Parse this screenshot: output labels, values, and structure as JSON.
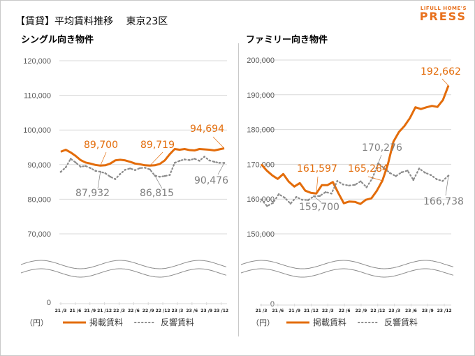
{
  "header": {
    "title": "【賃貸】平均賃料推移　 東京23区",
    "logo_top": "LIFULL HOME'S",
    "logo_main": "PRESS"
  },
  "colors": {
    "listing": "#e36c0a",
    "inquiry": "#8c8c8c",
    "grid": "#d9d9d9",
    "brand": "#e8711e"
  },
  "legend": {
    "listing": "掲載賃料",
    "inquiry": "反響賃料",
    "unit": "（円）"
  },
  "chart_data": [
    {
      "type": "line",
      "title": "シングル向き物件",
      "ylabel": "（円）",
      "ylim": [
        0,
        120000
      ],
      "yticks": [
        "120,000",
        "110,000",
        "100,000",
        "90,000",
        "80,000",
        "70,000",
        "0"
      ],
      "axis_break": [
        0,
        65000
      ],
      "grid": true,
      "legend_position": "bottom",
      "x_tick_labels": [
        "21/3",
        "21/6",
        "21/9",
        "21/12",
        "22/3",
        "22/6",
        "22/9",
        "22/12",
        "23/3",
        "23/6",
        "23/9",
        "23/12"
      ],
      "series": [
        {
          "name": "掲載賃料",
          "style": "solid",
          "values": [
            93700,
            94300,
            93500,
            92500,
            91300,
            90600,
            90300,
            89900,
            89700,
            89800,
            90300,
            91200,
            91400,
            91200,
            90800,
            90300,
            90100,
            89800,
            89719,
            89800,
            90200,
            91200,
            93000,
            94500,
            94300,
            94500,
            94200,
            94100,
            94500,
            94400,
            94300,
            94100,
            94400,
            94694
          ]
        },
        {
          "name": "反響賃料",
          "style": "dotted",
          "values": [
            87900,
            89200,
            91700,
            90600,
            89400,
            89600,
            89000,
            88200,
            87932,
            87500,
            86500,
            85800,
            87300,
            88500,
            88900,
            88400,
            89000,
            89100,
            88600,
            86815,
            86500,
            86700,
            87000,
            90500,
            91100,
            91500,
            91300,
            91700,
            91100,
            92300,
            91200,
            90800,
            90500,
            90476
          ]
        }
      ],
      "annotations": [
        {
          "text": "89,700",
          "series": "掲載賃料"
        },
        {
          "text": "89,719",
          "series": "掲載賃料"
        },
        {
          "text": "94,694",
          "series": "掲載賃料"
        },
        {
          "text": "87,932",
          "series": "反響賃料"
        },
        {
          "text": "86,815",
          "series": "反響賃料"
        },
        {
          "text": "90,476",
          "series": "反響賃料"
        }
      ]
    },
    {
      "type": "line",
      "title": "ファミリー向き物件",
      "ylabel": "（円）",
      "ylim": [
        0,
        200000
      ],
      "yticks": [
        "200,000",
        "190,000",
        "180,000",
        "170,000",
        "160,000",
        "150,000",
        "0"
      ],
      "axis_break": [
        0,
        145000
      ],
      "grid": true,
      "legend_position": "bottom",
      "x_tick_labels": [
        "21/3",
        "21/6",
        "21/9",
        "21/12",
        "22/3",
        "22/6",
        "22/9",
        "22/12",
        "23/3",
        "23/6",
        "23/9",
        "23/12"
      ],
      "series": [
        {
          "name": "掲載賃料",
          "style": "solid",
          "values": [
            170000,
            168200,
            166800,
            165800,
            167200,
            165000,
            163600,
            164600,
            162400,
            161800,
            161597,
            164000,
            164000,
            164900,
            161700,
            158800,
            159300,
            159200,
            158600,
            159800,
            160200,
            162400,
            165284,
            170000,
            176500,
            179300,
            181000,
            183300,
            186400,
            185900,
            186400,
            186800,
            186500,
            188500,
            192662
          ]
        },
        {
          "name": "反響賃料",
          "style": "dotted",
          "values": [
            159900,
            158000,
            158900,
            161400,
            160400,
            158700,
            160600,
            159800,
            159700,
            160800,
            160900,
            162000,
            161600,
            165200,
            164200,
            163900,
            164100,
            165100,
            163400,
            166000,
            170276,
            168900,
            167500,
            166600,
            167700,
            168200,
            165500,
            168800,
            167600,
            166900,
            165700,
            165200,
            166738
          ]
        }
      ],
      "annotations": [
        {
          "text": "161,597",
          "series": "掲載賃料"
        },
        {
          "text": "165,284",
          "series": "掲載賃料"
        },
        {
          "text": "192,662",
          "series": "掲載賃料"
        },
        {
          "text": "159,700",
          "series": "反響賃料"
        },
        {
          "text": "170,276",
          "series": "反響賃料"
        },
        {
          "text": "166,738",
          "series": "反響賃料"
        }
      ]
    }
  ]
}
